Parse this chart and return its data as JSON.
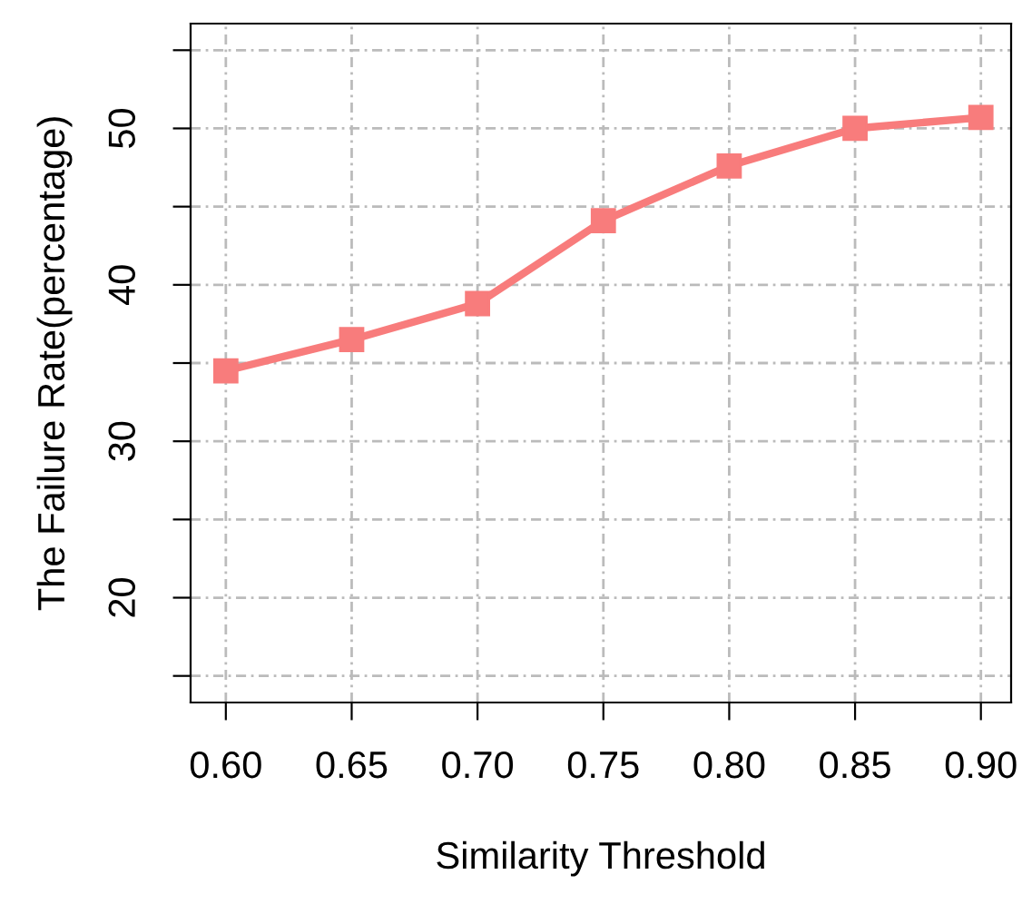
{
  "chart_data": {
    "type": "line",
    "xlabel": "Similarity Threshold",
    "ylabel": "The Failure Rate(percentage)",
    "x": [
      0.6,
      0.65,
      0.7,
      0.75,
      0.8,
      0.85,
      0.9
    ],
    "series": [
      {
        "color": "#f87c7c",
        "values": [
          34.5,
          36.5,
          38.8,
          44.1,
          47.6,
          50.0,
          50.7
        ]
      }
    ],
    "xlim": [
      0.586,
      0.912
    ],
    "xticks": [
      {
        "value": 0.6,
        "label": "0.60"
      },
      {
        "value": 0.65,
        "label": "0.65"
      },
      {
        "value": 0.7,
        "label": "0.70"
      },
      {
        "value": 0.75,
        "label": "0.75"
      },
      {
        "value": 0.8,
        "label": "0.80"
      },
      {
        "value": 0.85,
        "label": "0.85"
      },
      {
        "value": 0.9,
        "label": "0.90"
      }
    ],
    "ylim": [
      13.3,
      56.7
    ],
    "yticks": [
      {
        "value": 15,
        "label": null
      },
      20,
      {
        "value": 25,
        "label": null
      },
      30,
      {
        "value": 35,
        "label": null
      },
      40,
      {
        "value": 45,
        "label": null
      },
      50,
      {
        "value": 55,
        "label": null
      }
    ],
    "grid": true,
    "marker": "square",
    "line_style": "solid"
  }
}
